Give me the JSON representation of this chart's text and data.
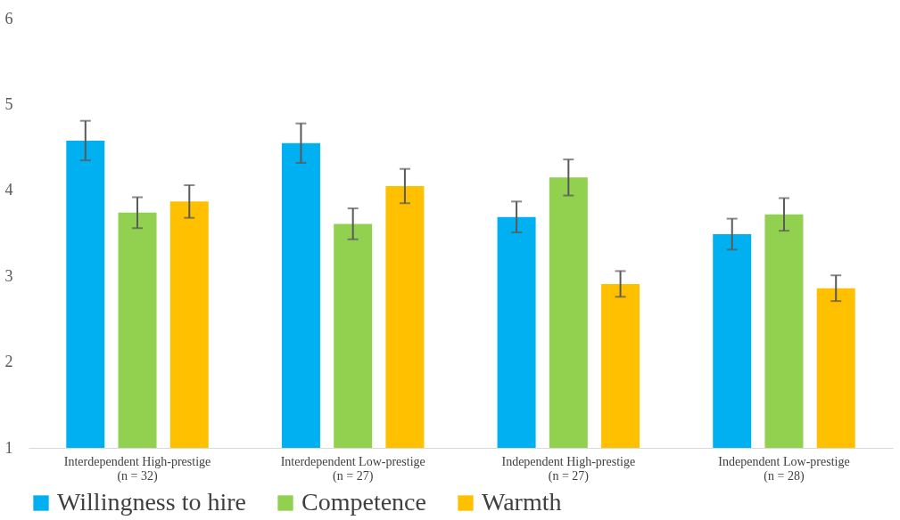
{
  "chart_data": {
    "type": "bar",
    "categories": [
      "Interdependent High-prestige\n(n = 32)",
      "Interdependent Low-prestige\n(n = 27)",
      "Independent High-prestige\n(n = 27)",
      "Independent Low-prestige\n(n = 28)"
    ],
    "series": [
      {
        "name": "Willingness to hire",
        "color": "#00b0f0",
        "values": [
          4.58,
          4.55,
          3.69,
          3.49
        ],
        "errors": [
          0.23,
          0.23,
          0.18,
          0.18
        ]
      },
      {
        "name": "Competence",
        "color": "#92d050",
        "values": [
          3.74,
          3.61,
          4.15,
          3.72
        ],
        "errors": [
          0.18,
          0.18,
          0.21,
          0.19
        ]
      },
      {
        "name": "Warmth",
        "color": "#ffc000",
        "values": [
          3.87,
          4.05,
          2.91,
          2.86
        ],
        "errors": [
          0.19,
          0.2,
          0.15,
          0.15
        ]
      }
    ],
    "ylim": [
      1,
      6
    ],
    "yticks": [
      1,
      2,
      3,
      4,
      5,
      6
    ],
    "grid": false,
    "legend": "bottom"
  }
}
